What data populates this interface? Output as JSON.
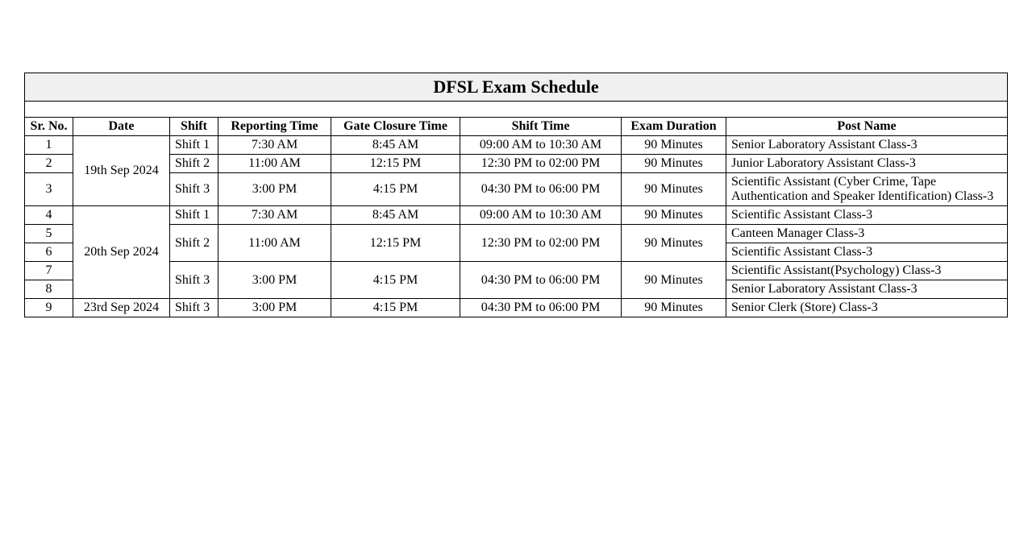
{
  "table": {
    "title": "DFSL Exam Schedule",
    "title_fontsize": 22,
    "title_bg": "#f0f0f0",
    "border_color": "#000000",
    "background_color": "#ffffff",
    "font_family": "Times New Roman",
    "body_fontsize": 16,
    "columns": [
      "Sr. No.",
      "Date",
      "Shift",
      "Reporting Time",
      "Gate Closure Time",
      "Shift Time",
      "Exam Duration",
      "Post Name"
    ],
    "col_align": [
      "center",
      "center",
      "left",
      "center",
      "center",
      "center",
      "center",
      "left"
    ],
    "rows": [
      {
        "sr": "1",
        "date": "19th Sep 2024",
        "shift": "Shift 1",
        "report": "7:30 AM",
        "gate": "8:45 AM",
        "shift_time": "09:00 AM to 10:30 AM",
        "duration": "90 Minutes",
        "post": "Senior Laboratory Assistant Class-3"
      },
      {
        "sr": "2",
        "date": "19th Sep 2024",
        "shift": "Shift 2",
        "report": "11:00 AM",
        "gate": "12:15 PM",
        "shift_time": "12:30 PM to 02:00 PM",
        "duration": "90 Minutes",
        "post": "Junior Laboratory Assistant Class-3"
      },
      {
        "sr": "3",
        "date": "19th Sep 2024",
        "shift": "Shift 3",
        "report": "3:00 PM",
        "gate": "4:15 PM",
        "shift_time": "04:30 PM to 06:00 PM",
        "duration": "90 Minutes",
        "post": "Scientific Assistant (Cyber Crime, Tape Authentication and Speaker Identification) Class-3"
      },
      {
        "sr": "4",
        "date": "20th Sep 2024",
        "shift": "Shift 1",
        "report": "7:30 AM",
        "gate": "8:45 AM",
        "shift_time": "09:00 AM to 10:30 AM",
        "duration": "90 Minutes",
        "post": "Scientific Assistant Class-3"
      },
      {
        "sr": "5",
        "date": "20th Sep 2024",
        "shift": "Shift 2",
        "report": "11:00 AM",
        "gate": "12:15 PM",
        "shift_time": "12:30 PM to 02:00 PM",
        "duration": "90 Minutes",
        "post": "Canteen Manager Class-3"
      },
      {
        "sr": "6",
        "date": "20th Sep 2024",
        "shift": "Shift 2",
        "report": "11:00 AM",
        "gate": "12:15 PM",
        "shift_time": "12:30 PM to 02:00 PM",
        "duration": "90 Minutes",
        "post": "Scientific Assistant Class-3"
      },
      {
        "sr": "7",
        "date": "20th Sep 2024",
        "shift": "Shift 3",
        "report": "3:00 PM",
        "gate": "4:15 PM",
        "shift_time": "04:30 PM to 06:00 PM",
        "duration": "90 Minutes",
        "post": "Scientific Assistant(Psychology) Class-3"
      },
      {
        "sr": "8",
        "date": "20th Sep 2024",
        "shift": "Shift 3",
        "report": "3:00 PM",
        "gate": "4:15 PM",
        "shift_time": "04:30 PM to 06:00 PM",
        "duration": "90 Minutes",
        "post": "Senior Laboratory Assistant Class-3"
      },
      {
        "sr": "9",
        "date": "23rd Sep 2024",
        "shift": "Shift 3",
        "report": "3:00 PM",
        "gate": "4:15 PM",
        "shift_time": "04:30 PM to 06:00 PM",
        "duration": "90 Minutes",
        "post": "Senior Clerk (Store) Class-3"
      }
    ]
  }
}
